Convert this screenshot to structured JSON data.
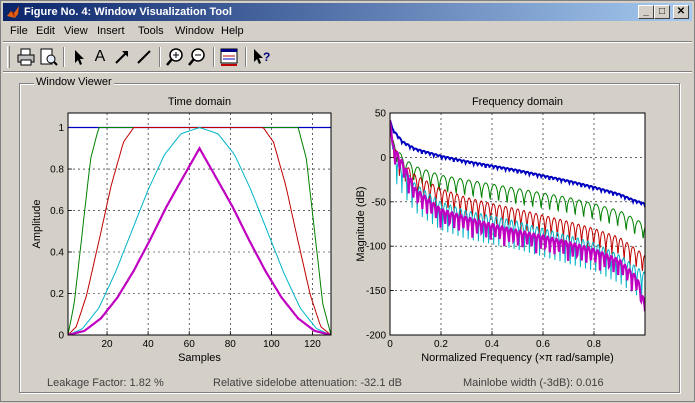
{
  "window": {
    "title": "Figure No. 4: Window Visualization Tool",
    "controls": {
      "minimize": "_",
      "maximize": "□",
      "close": "✕"
    }
  },
  "menu": [
    "File",
    "Edit",
    "View",
    "Insert",
    "Tools",
    "Window",
    "Help"
  ],
  "toolbar": {
    "icons": [
      "print-icon",
      "print-preview-icon",
      "select-arrow-icon",
      "insert-text-icon",
      "insert-arrow-icon",
      "insert-line-icon",
      "zoom-in-icon",
      "zoom-out-icon",
      "window-export-icon",
      "whats-this-icon"
    ],
    "text_tool_label": "A"
  },
  "panel": {
    "label": "Window Viewer"
  },
  "status": {
    "leakage": "Leakage Factor: 1.82 %",
    "sidelobe": "Relative sidelobe attenuation: -32.1 dB",
    "mainlobe": "Mainlobe width (-3dB): 0.016"
  },
  "chart_data": [
    {
      "type": "line",
      "title": "Time domain",
      "xlabel": "Samples",
      "ylabel": "Amplitude",
      "xlim": [
        1,
        129
      ],
      "ylim": [
        0,
        1.07
      ],
      "xticks": [
        "20",
        "40",
        "60",
        "80",
        "100",
        "120"
      ],
      "xtick_values": [
        20,
        40,
        60,
        80,
        100,
        120
      ],
      "yticks": [
        "0",
        "0.2",
        "0.4",
        "0.6",
        "0.8",
        "1"
      ],
      "ytick_values": [
        0,
        0.2,
        0.4,
        0.6,
        0.8,
        1
      ],
      "grid": true,
      "series": [
        {
          "color": "#0000c0",
          "width": 1.2,
          "x": [
            1,
            129
          ],
          "y": [
            1,
            1
          ]
        },
        {
          "color": "#008000",
          "width": 1,
          "x": [
            1,
            4,
            8,
            12,
            16,
            113,
            117,
            121,
            125,
            129
          ],
          "y": [
            0,
            0.15,
            0.5,
            0.85,
            1,
            1,
            0.85,
            0.5,
            0.15,
            0
          ]
        },
        {
          "color": "#c00000",
          "width": 1,
          "x": [
            1,
            5,
            10,
            16,
            22,
            28,
            33,
            96,
            101,
            107,
            113,
            119,
            124,
            129
          ],
          "y": [
            0,
            0.04,
            0.19,
            0.45,
            0.72,
            0.93,
            1,
            1,
            0.93,
            0.72,
            0.45,
            0.19,
            0.04,
            0
          ]
        },
        {
          "color": "#00b4c8",
          "width": 1,
          "x": [
            1,
            8,
            16,
            24,
            32,
            40,
            48,
            56,
            65,
            74,
            82,
            90,
            98,
            106,
            114,
            122,
            129
          ],
          "y": [
            0,
            0.03,
            0.13,
            0.3,
            0.5,
            0.7,
            0.87,
            0.97,
            1,
            0.97,
            0.87,
            0.7,
            0.5,
            0.3,
            0.13,
            0.03,
            0
          ]
        },
        {
          "color": "#c000c0",
          "width": 2.2,
          "x": [
            1,
            9,
            17,
            25,
            33,
            41,
            49,
            57,
            65,
            73,
            81,
            89,
            97,
            105,
            113,
            121,
            129
          ],
          "y": [
            0,
            0.02,
            0.08,
            0.18,
            0.31,
            0.46,
            0.62,
            0.76,
            0.9,
            0.76,
            0.62,
            0.46,
            0.31,
            0.18,
            0.08,
            0.02,
            0
          ]
        }
      ]
    },
    {
      "type": "line",
      "title": "Frequency domain",
      "xlabel": "Normalized Frequency  (×π rad/sample)",
      "ylabel": "Magnitude (dB)",
      "xlim": [
        0,
        1
      ],
      "ylim": [
        -200,
        50
      ],
      "xticks": [
        "0",
        "0.2",
        "0.4",
        "0.6",
        "0.8"
      ],
      "xtick_values": [
        0,
        0.2,
        0.4,
        0.6,
        0.8
      ],
      "yticks": [
        "50",
        "0",
        "-50",
        "-100",
        "-150",
        "-200"
      ],
      "ytick_values": [
        50,
        0,
        -50,
        -100,
        -150,
        -200
      ],
      "grid": true,
      "series": [
        {
          "color": "#0000c0",
          "width": 2,
          "trend_x": [
            0,
            0.01,
            0.05,
            0.1,
            0.2,
            0.3,
            0.4,
            0.5,
            0.6,
            0.7,
            0.8,
            0.9,
            0.95,
            1
          ],
          "trend_y": [
            42,
            32,
            18,
            10,
            2,
            -4,
            -9,
            -14,
            -20,
            -26,
            -33,
            -41,
            -47,
            -52
          ],
          "ripple_depth": 4,
          "ripple_count": 64
        },
        {
          "color": "#008000",
          "width": 1,
          "trend_x": [
            0,
            0.01,
            0.05,
            0.1,
            0.2,
            0.3,
            0.4,
            0.5,
            0.6,
            0.7,
            0.8,
            0.9,
            1
          ],
          "trend_y": [
            42,
            20,
            0,
            -10,
            -20,
            -25,
            -30,
            -35,
            -40,
            -45,
            -52,
            -60,
            -75
          ],
          "ripple_depth": 28,
          "ripple_count": 30
        },
        {
          "color": "#c00000",
          "width": 1,
          "trend_x": [
            0,
            0.01,
            0.05,
            0.1,
            0.2,
            0.3,
            0.4,
            0.5,
            0.6,
            0.7,
            0.8,
            0.9,
            1
          ],
          "trend_y": [
            42,
            15,
            -5,
            -20,
            -35,
            -45,
            -52,
            -58,
            -65,
            -72,
            -80,
            -90,
            -110
          ],
          "ripple_depth": 34,
          "ripple_count": 42
        },
        {
          "color": "#00b4c8",
          "width": 1,
          "trend_x": [
            0,
            0.01,
            0.05,
            0.1,
            0.2,
            0.3,
            0.4,
            0.5,
            0.6,
            0.7,
            0.8,
            0.9,
            1
          ],
          "trend_y": [
            42,
            10,
            -10,
            -30,
            -50,
            -60,
            -66,
            -72,
            -80,
            -88,
            -96,
            -110,
            -130
          ],
          "ripple_depth": 38,
          "ripple_count": 50
        },
        {
          "color": "#c000c0",
          "width": 2.2,
          "trend_x": [
            0,
            0.01,
            0.05,
            0.1,
            0.2,
            0.3,
            0.4,
            0.5,
            0.6,
            0.7,
            0.8,
            0.9,
            0.97,
            1
          ],
          "trend_y": [
            42,
            15,
            -5,
            -35,
            -58,
            -67,
            -75,
            -82,
            -88,
            -95,
            -103,
            -115,
            -135,
            -165
          ],
          "ripple_depth": 26,
          "ripple_count": 56
        }
      ]
    }
  ]
}
